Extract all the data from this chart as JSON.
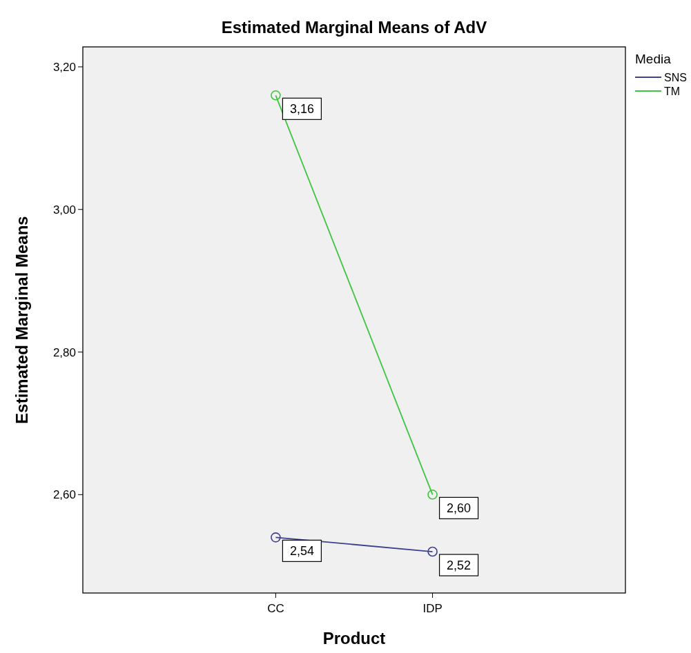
{
  "chart_data": {
    "type": "line",
    "title": "Estimated Marginal Means of AdV",
    "xlabel": "Product",
    "ylabel": "Estimated Marginal Means",
    "legend_title": "Media",
    "categories": [
      "CC",
      "IDP"
    ],
    "series": [
      {
        "name": "SNS",
        "color": "#3f3f8f",
        "values": [
          2.54,
          2.52
        ],
        "value_labels": [
          "2,54",
          "2,52"
        ]
      },
      {
        "name": "TM",
        "color": "#3ec43e",
        "values": [
          3.16,
          2.6
        ],
        "value_labels": [
          "3,16",
          "2,60"
        ]
      }
    ],
    "ylim": [
      2.462,
      3.228
    ],
    "yticks": [
      {
        "value": 2.6,
        "label": "2,60"
      },
      {
        "value": 2.8,
        "label": "2,80"
      },
      {
        "value": 3.0,
        "label": "3,00"
      },
      {
        "value": 3.2,
        "label": "3,20"
      }
    ],
    "grid": false,
    "legend": "top right",
    "marker": "circle",
    "line_style": "solid"
  }
}
